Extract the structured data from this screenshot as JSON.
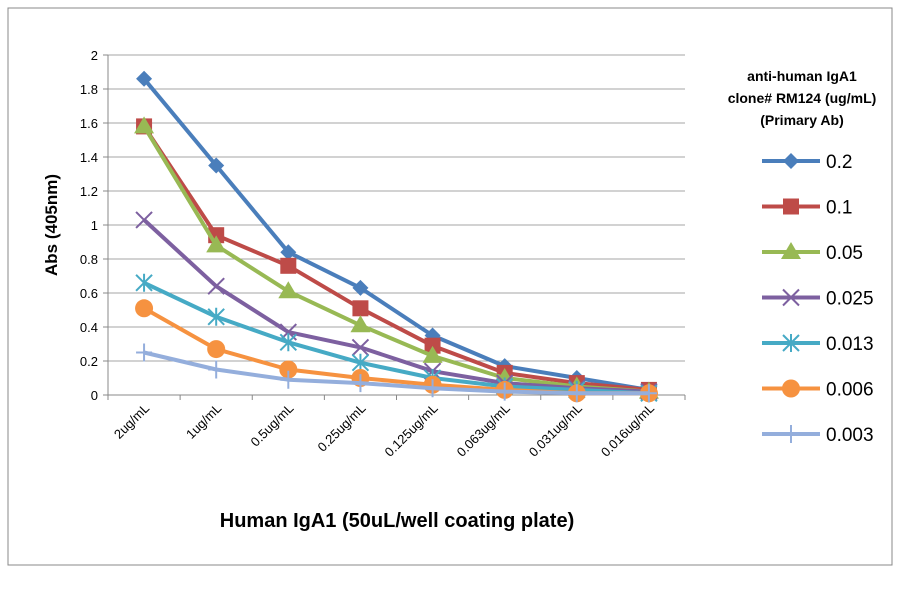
{
  "chart_data": {
    "type": "line",
    "xlabel": "Human IgA1 (50uL/well coating plate)",
    "ylabel": "Abs (405nm)",
    "ylim": [
      0,
      2
    ],
    "yticks": [
      "0",
      "0.2",
      "0.4",
      "0.6",
      "0.8",
      "1",
      "1.2",
      "1.4",
      "1.6",
      "1.8",
      "2"
    ],
    "grid": true,
    "legend_title": [
      "anti-human IgA1",
      "clone# RM124 (ug/mL)",
      "(Primary Ab)"
    ],
    "legend_position": "right",
    "categories": [
      "2ug/mL",
      "1ug/mL",
      "0.5ug/mL",
      "0.25ug/mL",
      "0.125ug/mL",
      "0.063ug/mL",
      "0.031ug/mL",
      "0.016ug/mL"
    ],
    "series": [
      {
        "name": "0.2",
        "color": "#4A7EBB",
        "marker": "diamond",
        "values": [
          1.86,
          1.35,
          0.84,
          0.63,
          0.35,
          0.17,
          0.1,
          0.03
        ]
      },
      {
        "name": "0.1",
        "color": "#BE4B48",
        "marker": "square",
        "values": [
          1.58,
          0.94,
          0.76,
          0.51,
          0.29,
          0.13,
          0.07,
          0.03
        ]
      },
      {
        "name": "0.05",
        "color": "#98B954",
        "marker": "triangle",
        "values": [
          1.58,
          0.88,
          0.61,
          0.41,
          0.23,
          0.1,
          0.05,
          0.02
        ]
      },
      {
        "name": "0.025",
        "color": "#7D60A0",
        "marker": "x",
        "values": [
          1.03,
          0.64,
          0.37,
          0.28,
          0.14,
          0.07,
          0.04,
          0.02
        ]
      },
      {
        "name": "0.013",
        "color": "#46AAC5",
        "marker": "star",
        "values": [
          0.66,
          0.46,
          0.31,
          0.19,
          0.1,
          0.05,
          0.03,
          0.01
        ]
      },
      {
        "name": "0.006",
        "color": "#F69240",
        "marker": "circle",
        "values": [
          0.51,
          0.27,
          0.15,
          0.1,
          0.06,
          0.03,
          0.01,
          0.01
        ]
      },
      {
        "name": "0.003",
        "color": "#94AEDC",
        "marker": "plus",
        "values": [
          0.25,
          0.15,
          0.09,
          0.07,
          0.04,
          0.02,
          0.01,
          0.01
        ]
      }
    ]
  }
}
